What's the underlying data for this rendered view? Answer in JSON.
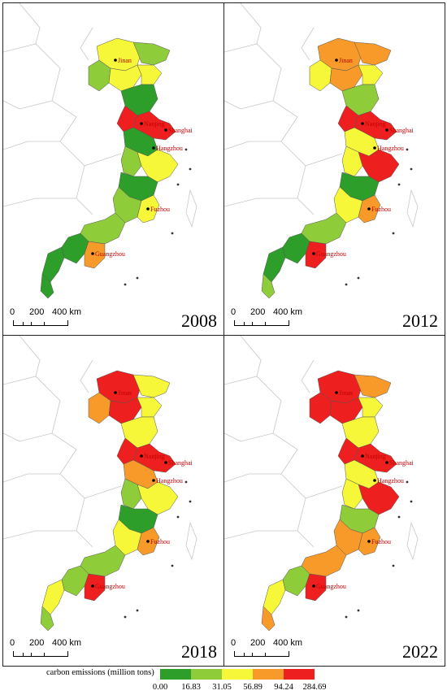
{
  "panels": [
    {
      "year": "2008",
      "cities": [
        {
          "name": "Jinan",
          "color": "#c00000"
        },
        {
          "name": "Nanjing",
          "color": "#c00000"
        },
        {
          "name": "Shanghai",
          "color": "#c00000"
        },
        {
          "name": "Hangzhou",
          "color": "#c00000"
        },
        {
          "name": "Fuzhou",
          "color": "#c00000"
        },
        {
          "name": "Guangzhou",
          "color": "#c00000"
        }
      ]
    },
    {
      "year": "2012",
      "cities": [
        {
          "name": "Jinan",
          "color": "#c00000"
        },
        {
          "name": "Nanjing",
          "color": "#c00000"
        },
        {
          "name": "Shanghai",
          "color": "#c00000"
        },
        {
          "name": "Hangzhou",
          "color": "#c00000"
        },
        {
          "name": "Fuzhou",
          "color": "#c00000"
        },
        {
          "name": "Guangzhou",
          "color": "#c00000"
        }
      ]
    },
    {
      "year": "2018",
      "cities": [
        {
          "name": "Jinan",
          "color": "#c00000"
        },
        {
          "name": "Nanjing",
          "color": "#c00000"
        },
        {
          "name": "Shanghai",
          "color": "#c00000"
        },
        {
          "name": "Hangzhou",
          "color": "#c00000"
        },
        {
          "name": "Fuzhou",
          "color": "#c00000"
        },
        {
          "name": "Guangzhou",
          "color": "#c00000"
        }
      ]
    },
    {
      "year": "2022",
      "cities": [
        {
          "name": "Jinan",
          "color": "#c00000"
        },
        {
          "name": "Nanjing",
          "color": "#c00000"
        },
        {
          "name": "Shanghai",
          "color": "#c00000"
        },
        {
          "name": "Hangzhou",
          "color": "#c00000"
        },
        {
          "name": "Fuzhou",
          "color": "#c00000"
        },
        {
          "name": "Guangzhou",
          "color": "#c00000"
        }
      ]
    }
  ],
  "scalebar": {
    "labels": [
      "0",
      "200",
      "400 km"
    ]
  },
  "legend": {
    "title": "carbon emissions (million  tons)",
    "breaks": [
      "0.00",
      "16.83",
      "31.05",
      "56.89",
      "94.24",
      "284.69"
    ],
    "colors": [
      "#2e9e2a",
      "#8fcc3a",
      "#f7f73a",
      "#f79a2a",
      "#ee1f1f"
    ]
  }
}
